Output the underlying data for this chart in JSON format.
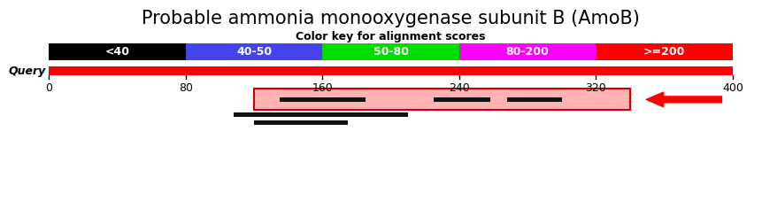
{
  "title": "Probable ammonia monooxygenase subunit B (AmoB)",
  "color_key_title": "Color key for alignment scores",
  "color_segments": [
    {
      "label": "<40",
      "color": "#000000",
      "xmin": 0,
      "xmax": 80
    },
    {
      "label": "40-50",
      "color": "#4444ee",
      "xmin": 80,
      "xmax": 160
    },
    {
      "label": "50-80",
      "color": "#00dd00",
      "xmin": 160,
      "xmax": 240
    },
    {
      "label": "80-200",
      "color": "#ff00ff",
      "xmin": 240,
      "xmax": 320
    },
    {
      "label": ">=200",
      "color": "#ff0000",
      "xmin": 320,
      "xmax": 400
    }
  ],
  "query_bar_color": "#ff0000",
  "query_label": "Query",
  "axis_ticks": [
    0,
    80,
    160,
    240,
    320,
    400
  ],
  "xmin": 0,
  "xmax": 400,
  "hit_box": {
    "xmin": 120,
    "xmax": 340,
    "facecolor": "#ffb3b3",
    "edgecolor": "#cc0000",
    "linewidth": 1.5
  },
  "black_bars_outside": [
    {
      "xmin": 108,
      "xmax": 210
    },
    {
      "xmin": 120,
      "xmax": 175
    }
  ],
  "dark_bars_inside": [
    {
      "xmin": 135,
      "xmax": 185
    },
    {
      "xmin": 225,
      "xmax": 258
    },
    {
      "xmin": 268,
      "xmax": 300
    }
  ],
  "arrow_xstart": 395,
  "arrow_xend": 348,
  "background_color": "#ffffff",
  "title_fontsize": 15,
  "key_label_fontsize": 9,
  "tick_fontsize": 9,
  "query_fontsize": 9
}
